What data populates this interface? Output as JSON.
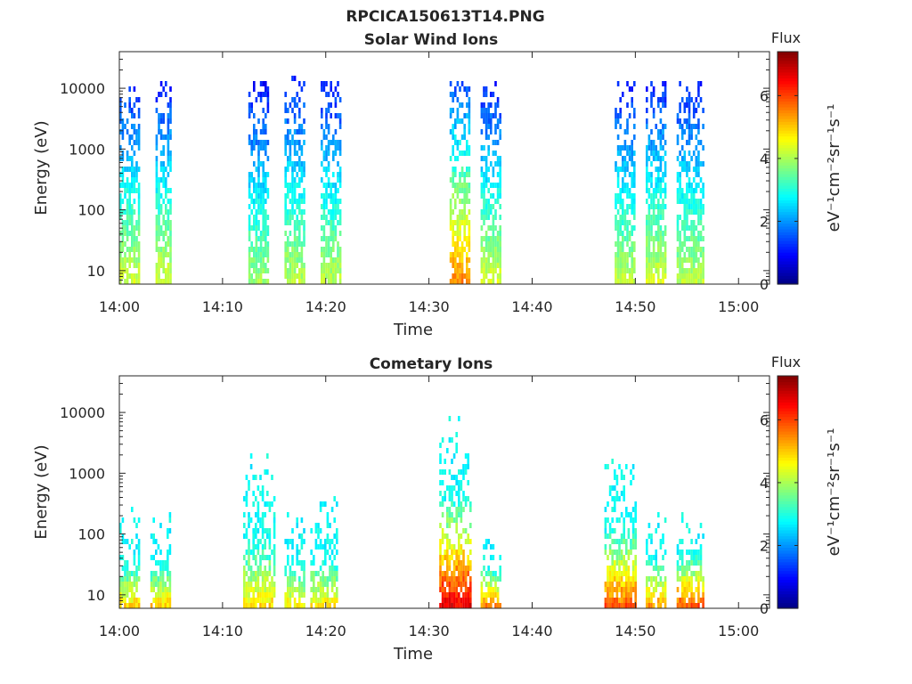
{
  "figure": {
    "title": "RPCICA150613T14.PNG"
  },
  "colorbar": {
    "label": "Flux",
    "unit_text": "eV⁻¹cm⁻²sr⁻¹s⁻¹",
    "range": [
      0,
      7.4
    ],
    "ticks": [
      "0",
      "2",
      "4",
      "6"
    ],
    "tick_values": [
      0,
      2,
      4,
      6
    ],
    "colormap": "jet"
  },
  "chart_data": [
    {
      "type": "heatmap",
      "title": "Solar Wind Ions",
      "xlabel": "Time",
      "ylabel": "Energy (eV)",
      "yscale": "log",
      "ylim": [
        6,
        40000
      ],
      "xlim": [
        "14:00",
        "15:03"
      ],
      "x_tick_labels": [
        "14:00",
        "14:10",
        "14:20",
        "14:30",
        "14:40",
        "14:50",
        "15:00"
      ],
      "y_tick_labels": [
        "10",
        "100",
        "1000",
        "10000"
      ],
      "bursts": [
        {
          "start": "14:00",
          "end": "14:02",
          "e_min": 6,
          "e_max": 13000,
          "peak_flux": 4.4
        },
        {
          "start": "14:03.5",
          "end": "14:05",
          "e_min": 6,
          "e_max": 14000,
          "peak_flux": 4.4
        },
        {
          "start": "14:12.5",
          "end": "14:14.5",
          "e_min": 6,
          "e_max": 14000,
          "peak_flux": 4.0
        },
        {
          "start": "14:16",
          "end": "14:18",
          "e_min": 6,
          "e_max": 18000,
          "peak_flux": 4.2
        },
        {
          "start": "14:19.5",
          "end": "14:21.5",
          "e_min": 6,
          "e_max": 14000,
          "peak_flux": 4.2
        },
        {
          "start": "14:32",
          "end": "14:34",
          "e_min": 6,
          "e_max": 15000,
          "peak_flux": 5.6
        },
        {
          "start": "14:35",
          "end": "14:37",
          "e_min": 6,
          "e_max": 14000,
          "peak_flux": 4.4
        },
        {
          "start": "14:48",
          "end": "14:50",
          "e_min": 6,
          "e_max": 14000,
          "peak_flux": 4.2
        },
        {
          "start": "14:51",
          "end": "14:53",
          "e_min": 6,
          "e_max": 14000,
          "peak_flux": 4.4
        },
        {
          "start": "14:54",
          "end": "14:56.5",
          "e_min": 6,
          "e_max": 15000,
          "peak_flux": 4.2
        }
      ]
    },
    {
      "type": "heatmap",
      "title": "Cometary Ions",
      "xlabel": "Time",
      "ylabel": "Energy (eV)",
      "yscale": "log",
      "ylim": [
        6,
        40000
      ],
      "xlim": [
        "14:00",
        "15:03"
      ],
      "x_tick_labels": [
        "14:00",
        "14:10",
        "14:20",
        "14:30",
        "14:40",
        "14:50",
        "15:00"
      ],
      "y_tick_labels": [
        "10",
        "100",
        "1000",
        "10000"
      ],
      "bursts": [
        {
          "start": "14:00",
          "end": "14:02",
          "e_min": 6,
          "e_max": 300,
          "peak_flux": 5.2
        },
        {
          "start": "14:03",
          "end": "14:05",
          "e_min": 6,
          "e_max": 250,
          "peak_flux": 5.2
        },
        {
          "start": "14:12",
          "end": "14:15",
          "e_min": 6,
          "e_max": 2400,
          "peak_flux": 5.0
        },
        {
          "start": "14:16",
          "end": "14:18",
          "e_min": 6,
          "e_max": 300,
          "peak_flux": 5.0
        },
        {
          "start": "14:18.5",
          "end": "14:21",
          "e_min": 6,
          "e_max": 500,
          "peak_flux": 5.0
        },
        {
          "start": "14:31",
          "end": "14:34",
          "e_min": 6,
          "e_max": 10000,
          "peak_flux": 6.8
        },
        {
          "start": "14:35",
          "end": "14:37",
          "e_min": 6,
          "e_max": 150,
          "peak_flux": 5.8
        },
        {
          "start": "14:47",
          "end": "14:50",
          "e_min": 6,
          "e_max": 2400,
          "peak_flux": 6.0
        },
        {
          "start": "14:51",
          "end": "14:53",
          "e_min": 6,
          "e_max": 300,
          "peak_flux": 5.6
        },
        {
          "start": "14:54",
          "end": "14:56.5",
          "e_min": 6,
          "e_max": 300,
          "peak_flux": 6.2
        }
      ]
    }
  ]
}
